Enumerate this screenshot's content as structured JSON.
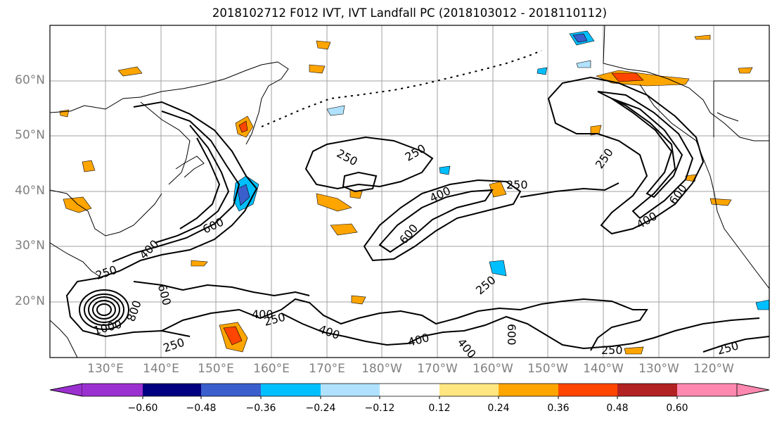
{
  "title": "2018102712 F012 IVT, IVT Landfall PC (2018103012 - 2018110112)",
  "lat_labels": [
    "60°N",
    "50°N",
    "40°N",
    "30°N",
    "20°N"
  ],
  "lon_labels": [
    "130°E",
    "140°E",
    "150°E",
    "160°E",
    "170°E",
    "180°W",
    "170°W",
    "160°W",
    "150°W",
    "140°W",
    "130°W",
    "120°W"
  ],
  "contour_labels": [
    "250",
    "250",
    "250",
    "250",
    "250",
    "250",
    "250",
    "250",
    "250",
    "250",
    "400",
    "400",
    "400",
    "400",
    "400",
    "400",
    "600",
    "600",
    "600",
    "600",
    "600",
    "800",
    "1000",
    "400"
  ],
  "colorbar": {
    "ticks": [
      "−0.60",
      "−0.48",
      "−0.36",
      "−0.24",
      "−0.12",
      "0.12",
      "0.24",
      "0.36",
      "0.48",
      "0.60"
    ],
    "colors": [
      "#9b30d0",
      "#000080",
      "#3a5fcd",
      "#00bfff",
      "#b0e2ff",
      "#ffffff",
      "#ffe680",
      "#ffa500",
      "#ff4500",
      "#b22222",
      "#ff88b0"
    ],
    "under_color": "#9b30d0",
    "over_color": "#ff88b0"
  }
}
